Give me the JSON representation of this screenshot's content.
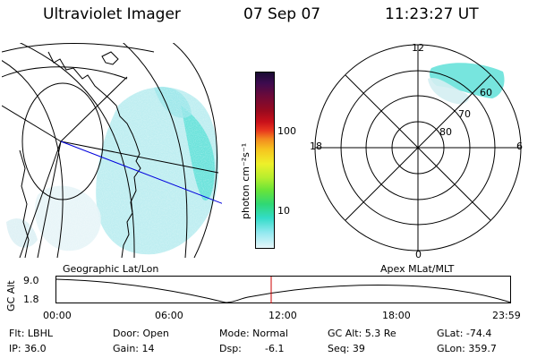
{
  "header": {
    "instrument": "Ultraviolet Imager",
    "date": "07 Sep 07",
    "time": "11:23:27 UT"
  },
  "left_panel": {
    "label": "Geographic Lat/Lon"
  },
  "right_panel": {
    "label": "Apex MLat/MLT",
    "mlt_labels": {
      "top": "12",
      "bottom": "0",
      "left": "18",
      "right": "6"
    },
    "lat_labels": [
      "60",
      "70",
      "80"
    ]
  },
  "colorbar": {
    "unit_label": "photon cm⁻²s⁻¹",
    "ticks": [
      "100",
      "10"
    ],
    "colors": [
      "#1a0b33",
      "#3d0b4f",
      "#6a0a3a",
      "#9a0a1e",
      "#c8101a",
      "#e8361e",
      "#f38b1f",
      "#f6c51f",
      "#eef02a",
      "#b6ee2e",
      "#6ae438",
      "#2fd874",
      "#33dcc8",
      "#8fe8ef",
      "#e6f6fa"
    ]
  },
  "altitude_plot": {
    "ylabel": "GC Alt",
    "y_ticks": [
      "9.0",
      "1.8"
    ],
    "x_ticks": [
      "00:00",
      "06:00",
      "12:00",
      "18:00",
      "23:59"
    ],
    "cursor_color": "#cc0000"
  },
  "info": {
    "flt": "Flt: LBHL",
    "ip": "IP: 36.0",
    "door": "Door: Open",
    "gain": "Gain: 14",
    "mode": "Mode: Normal",
    "dsp_label": "Dsp:",
    "dsp_value": "-6.1",
    "gc_alt": "GC Alt: 5.3 Re",
    "seq": "Seq: 39",
    "glat": "GLat: -74.4",
    "glon": "GLon: 359.7"
  }
}
